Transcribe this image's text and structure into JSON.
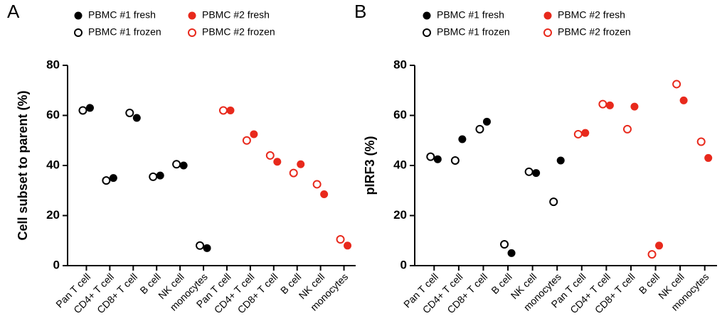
{
  "chart_data": [
    {
      "type": "scatter",
      "title": "A",
      "y_label": "Cell subset to parent (%)",
      "categories": [
        "Pan T cell",
        "CD4+ T cell",
        "CD8+ T cell",
        "B cell",
        "NK cell",
        "monocytes",
        "Pan T cell",
        "CD4+ T cell",
        "CD8+ T cell",
        "B cell",
        "NK cell",
        "monocytes"
      ],
      "series": [
        {
          "name": "PBMC #1 fresh",
          "color": "#000000",
          "fill": true,
          "values": [
            63,
            35,
            59,
            36,
            40,
            7,
            null,
            null,
            null,
            null,
            null,
            null
          ]
        },
        {
          "name": "PBMC #1 frozen",
          "color": "#000000",
          "fill": false,
          "values": [
            62,
            34,
            61,
            35.5,
            40.5,
            8,
            null,
            null,
            null,
            null,
            null,
            null
          ]
        },
        {
          "name": "PBMC #2 fresh",
          "color": "#e8291c",
          "fill": true,
          "values": [
            null,
            null,
            null,
            null,
            null,
            null,
            62,
            52.5,
            41.5,
            40.5,
            28.5,
            8
          ]
        },
        {
          "name": "PBMC #2 frozen",
          "color": "#e8291c",
          "fill": false,
          "values": [
            null,
            null,
            null,
            null,
            null,
            null,
            62,
            50,
            44,
            37,
            32.5,
            10.5
          ]
        }
      ],
      "ylim": [
        0,
        80
      ],
      "yticks": [
        0,
        20,
        40,
        60,
        80
      ]
    },
    {
      "type": "scatter",
      "title": "B",
      "y_label": "pIRF3 (%)",
      "categories": [
        "Pan T cell",
        "CD4+ T cell",
        "CD8+ T cell",
        "B cell",
        "NK cell",
        "monocytes",
        "Pan T cell",
        "CD4+ T cell",
        "CD8+ T cell",
        "B cell",
        "NK cell",
        "monocytes"
      ],
      "series": [
        {
          "name": "PBMC #1 fresh",
          "color": "#000000",
          "fill": true,
          "values": [
            42.5,
            50.5,
            57.5,
            5,
            37,
            42,
            null,
            null,
            null,
            null,
            null,
            null
          ]
        },
        {
          "name": "PBMC #1 frozen",
          "color": "#000000",
          "fill": false,
          "values": [
            43.5,
            42,
            54.5,
            8.5,
            37.5,
            25.5,
            null,
            null,
            null,
            null,
            null,
            null
          ]
        },
        {
          "name": "PBMC #2 fresh",
          "color": "#e8291c",
          "fill": true,
          "values": [
            null,
            null,
            null,
            null,
            null,
            null,
            53,
            64,
            63.5,
            8,
            66,
            43
          ]
        },
        {
          "name": "PBMC #2 frozen",
          "color": "#e8291c",
          "fill": false,
          "values": [
            null,
            null,
            null,
            null,
            null,
            null,
            52.5,
            64.5,
            54.5,
            4.5,
            72.5,
            49.5
          ]
        }
      ],
      "ylim": [
        0,
        80
      ],
      "yticks": [
        0,
        20,
        40,
        60,
        80
      ]
    }
  ]
}
